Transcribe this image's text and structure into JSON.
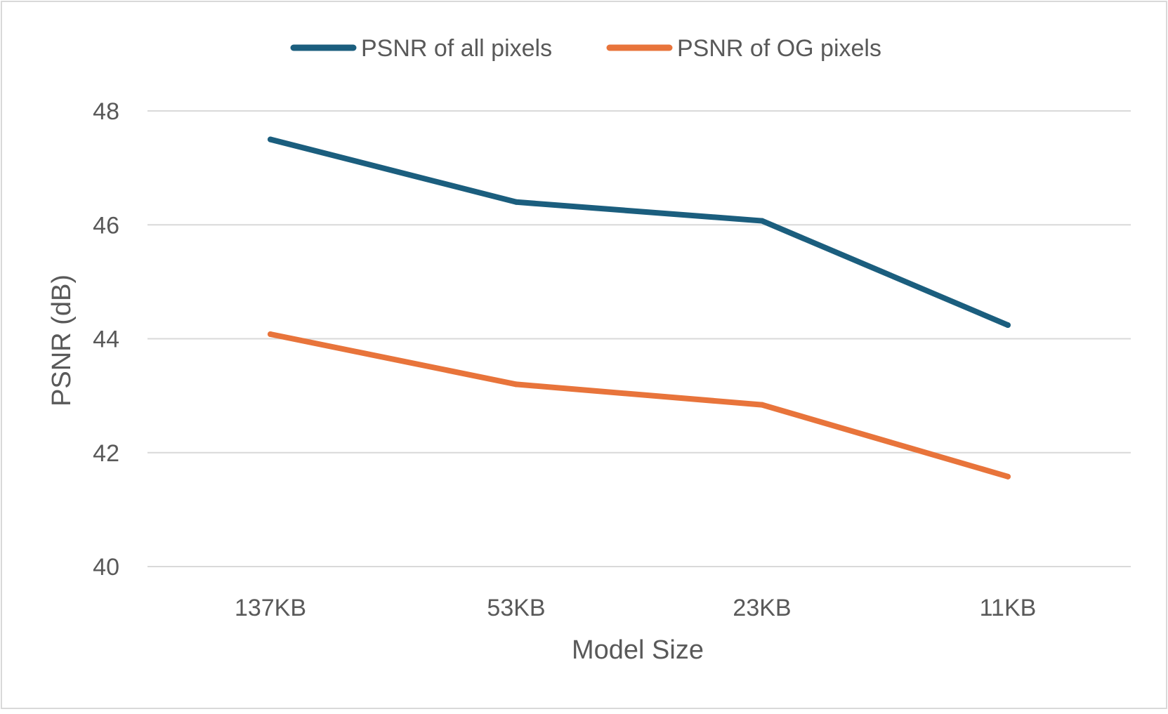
{
  "chart_data": {
    "type": "line",
    "title": "",
    "xlabel": "Model Size",
    "ylabel": "PSNR (dB)",
    "categories": [
      "137KB",
      "53KB",
      "23KB",
      "11KB"
    ],
    "ylim": [
      40,
      48
    ],
    "yticks": [
      40,
      42,
      44,
      46,
      48
    ],
    "ytick_labels": [
      "40",
      "42",
      "44",
      "46",
      "48"
    ],
    "grid": "horizontal",
    "legend_position": "top-center",
    "series": [
      {
        "name": "PSNR of all pixels",
        "color": "#1B5E7E",
        "values": [
          47.5,
          46.4,
          46.07,
          44.24
        ]
      },
      {
        "name": "PSNR of OG pixels",
        "color": "#E8743B",
        "values": [
          44.08,
          43.2,
          42.84,
          41.58
        ]
      }
    ]
  }
}
